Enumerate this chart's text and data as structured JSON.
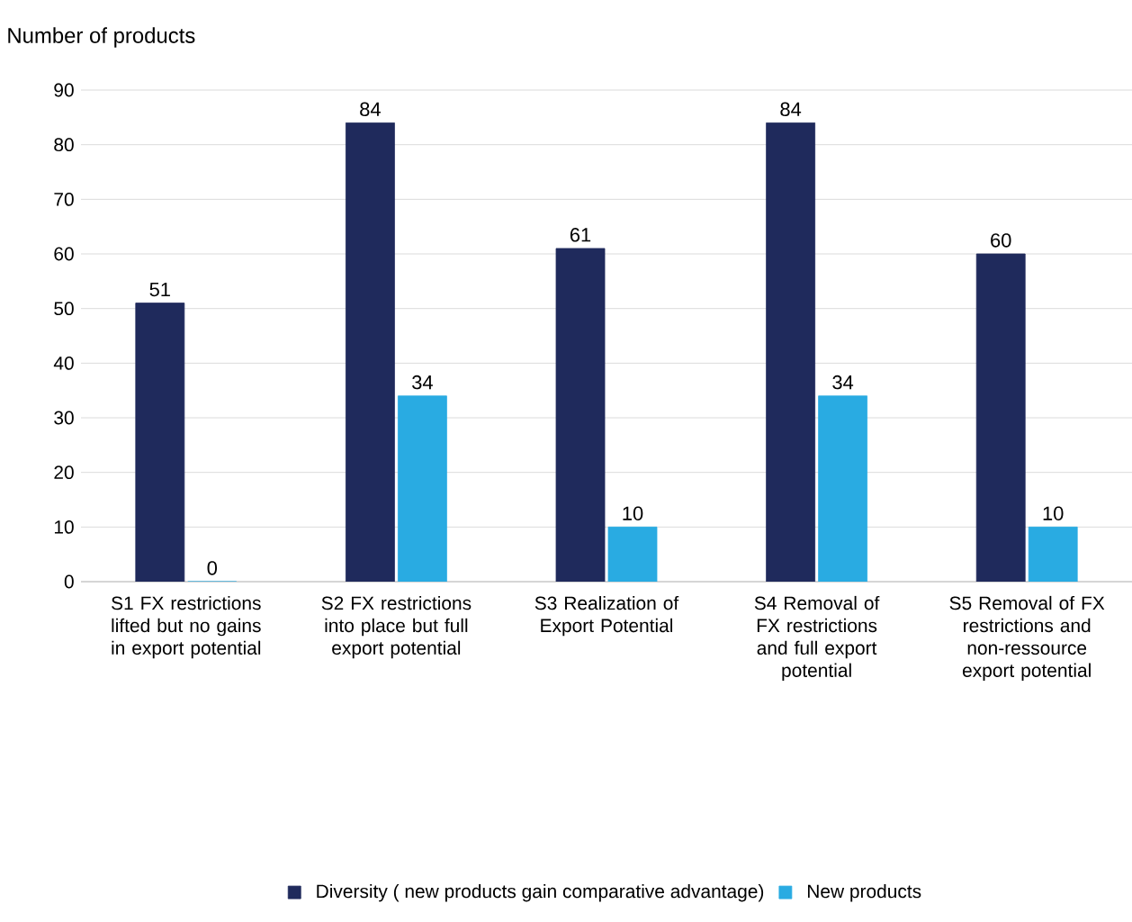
{
  "chart_data": {
    "type": "bar",
    "ylabel": "Number of products",
    "categories": [
      "S1 FX restrictions lifted but no gains in export potential",
      "S2 FX restrictions into place but full export potential",
      "S3 Realization of Export Potential",
      "S4 Removal of FX restrictions and full export potential",
      "S5 Removal of FX restrictions and non-ressource export potential"
    ],
    "series": [
      {
        "name": "Diversity ( new products gain comparative advantage)",
        "color": "#1f2a5c",
        "values": [
          51,
          84,
          61,
          84,
          60
        ]
      },
      {
        "name": "New products",
        "color": "#29abe2",
        "values": [
          0,
          34,
          10,
          34,
          10
        ]
      }
    ],
    "ylim": [
      0,
      90
    ],
    "yticks": [
      0,
      10,
      20,
      30,
      40,
      50,
      60,
      70,
      80,
      90
    ],
    "grid": "y",
    "legend": "bottom",
    "data_labels": true
  }
}
